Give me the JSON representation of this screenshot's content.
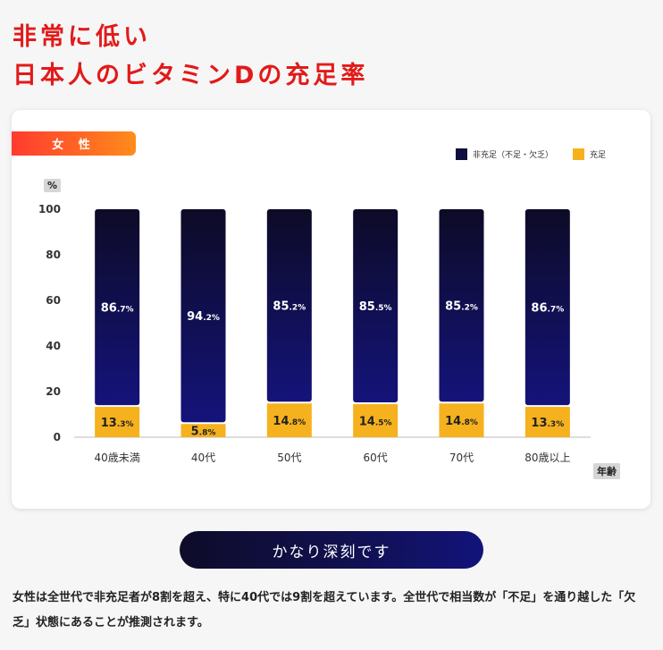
{
  "header": {
    "line1": "非常に低い",
    "line2": "日本人のビタミンDの充足率"
  },
  "card": {
    "tag_label": "女 性",
    "legend": [
      {
        "label": "非充足（不足・欠乏）",
        "color": "#0f0e3c"
      },
      {
        "label": "充足",
        "color": "#f5b21e"
      }
    ],
    "y_unit": "%",
    "x_unit": "年齢"
  },
  "chart_data": {
    "type": "bar",
    "stacked": true,
    "categories": [
      "40歳未満",
      "40代",
      "50代",
      "60代",
      "70代",
      "80歳以上"
    ],
    "series": [
      {
        "name": "非充足（不足・欠乏）",
        "values": [
          86.7,
          94.2,
          85.2,
          85.5,
          85.2,
          86.7
        ],
        "color": "#0f0e3c"
      },
      {
        "name": "充足",
        "values": [
          13.3,
          5.8,
          14.8,
          14.5,
          14.8,
          13.3
        ],
        "color": "#f5b21e"
      }
    ],
    "ylim": [
      0,
      100
    ],
    "yticks": [
      0,
      20,
      40,
      60,
      80,
      100
    ],
    "ylabel": "%",
    "xlabel": "年齢",
    "grid": false,
    "legend_position": "top-right"
  },
  "cta": {
    "label": "かなり深刻です"
  },
  "body": {
    "text": "女性は全世代で非充足者が8割を超え、特に40代では9割を超えています。全世代で相当数が「不足」を通り越した「欠乏」状態にあることが推測されます。"
  }
}
